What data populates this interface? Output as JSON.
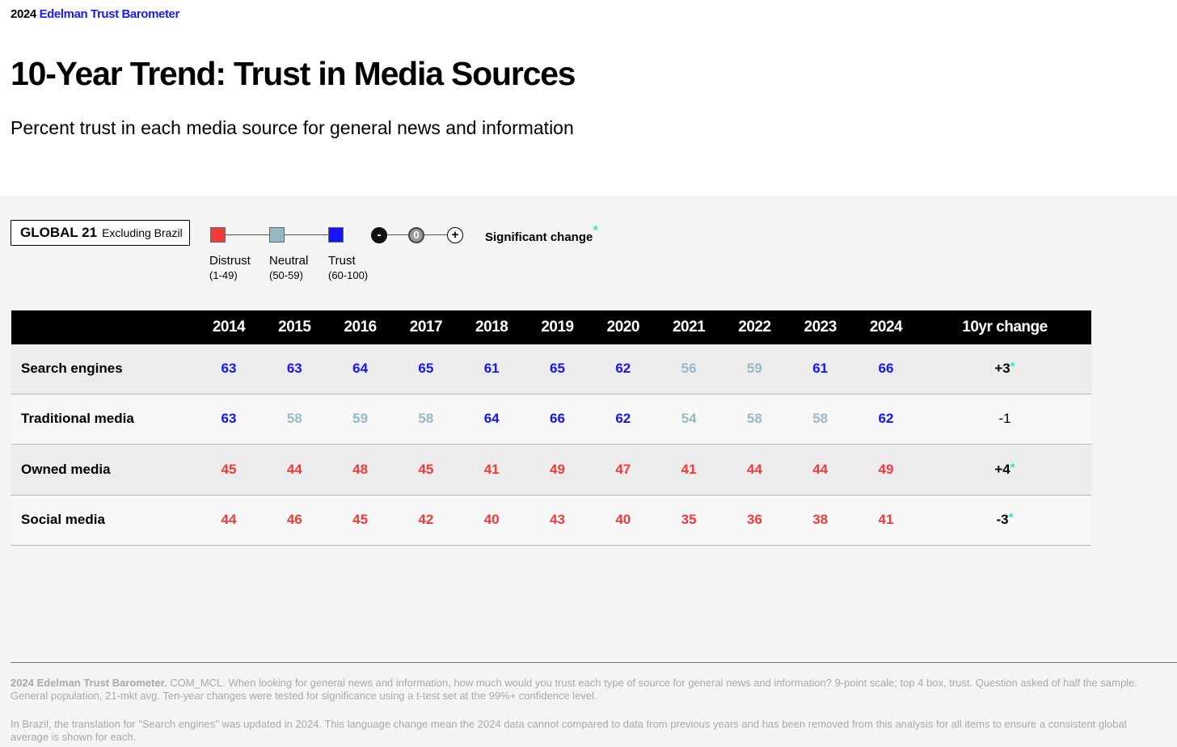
{
  "header": {
    "brand_year": "2024",
    "brand_name": "Edelman Trust Barometer"
  },
  "title": "10-Year Trend: Trust in Media Sources",
  "subtitle": "Percent trust in each media source for general news and information",
  "scope": {
    "main": "GLOBAL 21",
    "sub": "Excluding Brazil"
  },
  "legend": {
    "distrust": {
      "label": "Distrust",
      "range": "(1-49)"
    },
    "neutral": {
      "label": "Neutral",
      "range": "(50-59)"
    },
    "trust": {
      "label": "Trust",
      "range": "(60-100)"
    },
    "minus_symbol": "-",
    "zero_symbol": "0",
    "plus_symbol": "+",
    "significant_change": "Significant change",
    "significant_marker": "*"
  },
  "colors": {
    "distrust": "#f33a3a",
    "neutral": "#96b9c3",
    "trust": "#1414ff",
    "significant": "#2de6c8"
  },
  "chart_data": {
    "type": "table",
    "title": "10-Year Trend: Trust in Media Sources",
    "years": [
      "2014",
      "2015",
      "2016",
      "2017",
      "2018",
      "2019",
      "2020",
      "2021",
      "2022",
      "2023",
      "2024"
    ],
    "change_header": "10yr change",
    "rows": [
      {
        "label": "Search engines",
        "values": [
          63,
          63,
          64,
          65,
          61,
          65,
          62,
          56,
          59,
          61,
          66
        ],
        "change": "+3",
        "significant": true
      },
      {
        "label": "Traditional media",
        "values": [
          63,
          58,
          59,
          58,
          64,
          66,
          62,
          54,
          58,
          58,
          62
        ],
        "change": "-1",
        "significant": false
      },
      {
        "label": "Owned media",
        "values": [
          45,
          44,
          48,
          45,
          41,
          49,
          47,
          41,
          44,
          44,
          49
        ],
        "change": "+4",
        "significant": true
      },
      {
        "label": "Social media",
        "values": [
          44,
          46,
          45,
          42,
          40,
          43,
          40,
          35,
          36,
          38,
          41
        ],
        "change": "-3",
        "significant": true
      }
    ]
  },
  "footnotes": {
    "source_bold": "2024 Edelman Trust Barometer.",
    "source_text": " COM_MCL. When looking for general news and information, how much would you trust each type of source for general news and information? 9-point scale; top 4 box, trust. Question asked of half the sample. General population, 21-mkt avg. Ten-year changes were tested for significance using a t-test set at the 99%+ confidence level.",
    "brazil_note": "In Brazil, the translation for \"Search engines\" was updated in 2024. This language change mean the 2024 data cannot compared to data from previous years and has been removed from this analysis for all items to ensure a consistent global average is shown for each."
  }
}
